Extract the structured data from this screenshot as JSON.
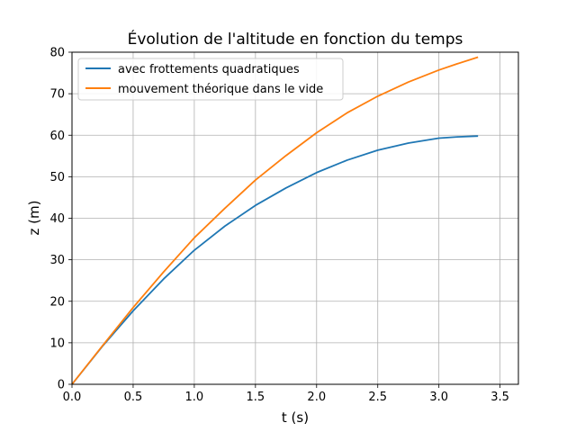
{
  "chart_data": {
    "type": "line",
    "title": "Évolution de l'altitude en fonction du temps",
    "xlabel": "t (s)",
    "ylabel": "z (m)",
    "xlim": [
      0,
      3.65
    ],
    "ylim": [
      0,
      80
    ],
    "x_ticks": [
      0.0,
      0.5,
      1.0,
      1.5,
      2.0,
      2.5,
      3.0,
      3.5
    ],
    "x_tick_labels": [
      "0.0",
      "0.5",
      "1.0",
      "1.5",
      "2.0",
      "2.5",
      "3.0",
      "3.5"
    ],
    "y_ticks": [
      0,
      10,
      20,
      30,
      40,
      50,
      60,
      70,
      80
    ],
    "y_tick_labels": [
      "0",
      "10",
      "20",
      "30",
      "40",
      "50",
      "60",
      "70",
      "80"
    ],
    "grid": true,
    "legend_position": "upper-left",
    "series": [
      {
        "name": "avec frottements quadratiques",
        "color": "#1f77b4",
        "x": [
          0,
          0.25,
          0.5,
          0.75,
          1.0,
          1.25,
          1.5,
          1.75,
          2.0,
          2.25,
          2.5,
          2.75,
          3.0,
          3.15,
          3.32
        ],
        "y": [
          0,
          9.2,
          17.7,
          25.4,
          32.3,
          38.1,
          43.1,
          47.3,
          51.0,
          54.0,
          56.4,
          58.1,
          59.3,
          59.6,
          59.8
        ]
      },
      {
        "name": "mouvement théorique dans le vide",
        "color": "#ff7f0e",
        "x": [
          0,
          0.25,
          0.5,
          0.75,
          1.0,
          1.25,
          1.5,
          1.75,
          2.0,
          2.25,
          2.5,
          2.75,
          3.0,
          3.15,
          3.32
        ],
        "y": [
          0,
          9.3,
          18.5,
          27.1,
          35.3,
          42.4,
          49.2,
          55.1,
          60.6,
          65.4,
          69.4,
          72.8,
          75.7,
          77.2,
          78.8
        ]
      }
    ]
  }
}
